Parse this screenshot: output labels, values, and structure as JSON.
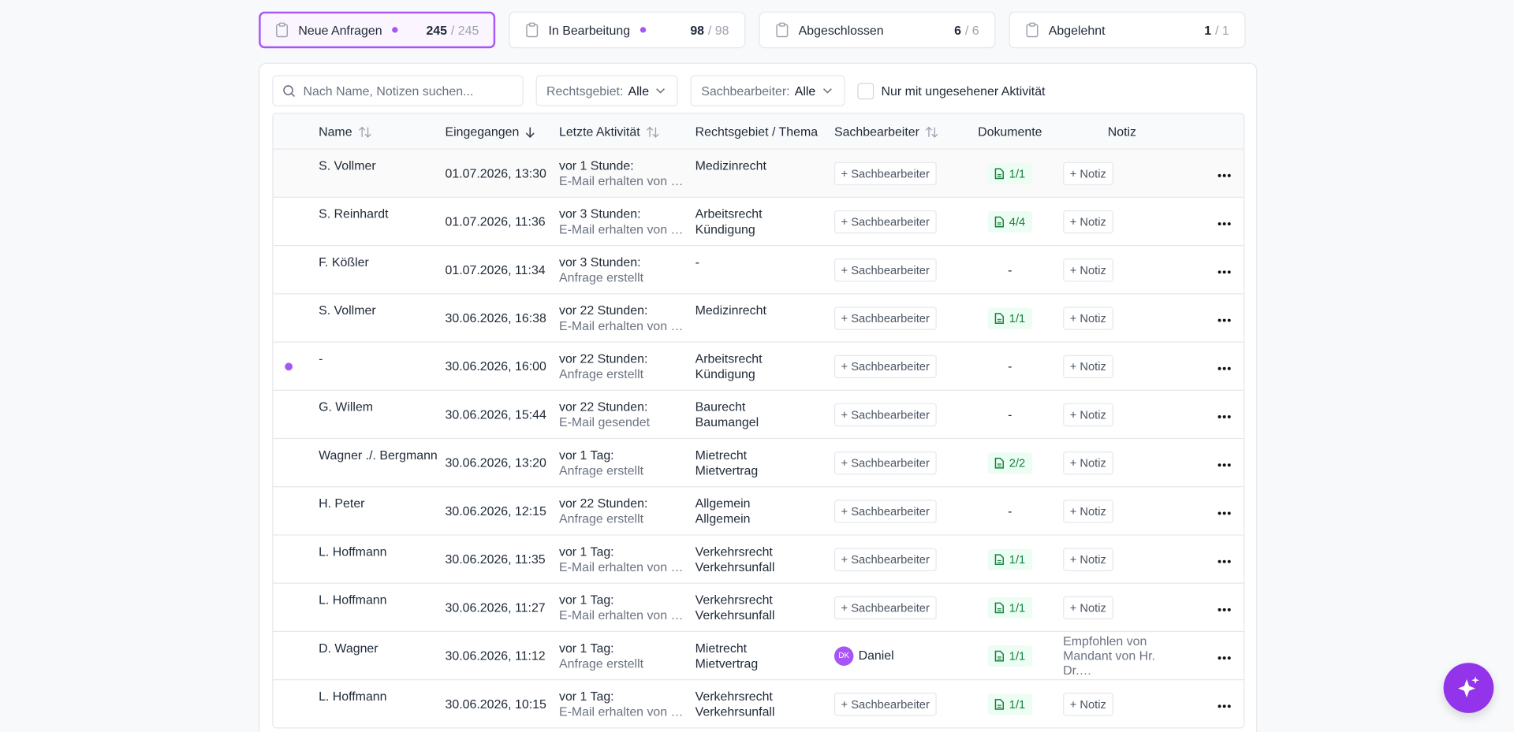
{
  "tabs": [
    {
      "label": "Neue Anfragen",
      "count": "245",
      "total": "/ 245",
      "unseen": true,
      "active": true
    },
    {
      "label": "In Bearbeitung",
      "count": "98",
      "total": "/ 98",
      "unseen": true,
      "active": false
    },
    {
      "label": "Abgeschlossen",
      "count": "6",
      "total": "/ 6",
      "unseen": false,
      "active": false
    },
    {
      "label": "Abgelehnt",
      "count": "1",
      "total": "/ 1",
      "unseen": false,
      "active": false
    }
  ],
  "filters": {
    "search_placeholder": "Nach Name, Notizen suchen...",
    "area_label": "Rechtsgebiet:",
    "area_value": "Alle",
    "assignee_label": "Sachbearbeiter:",
    "assignee_value": "Alle",
    "checkbox_label": "Nur mit ungesehener Aktivität"
  },
  "table": {
    "headers": [
      "Name",
      "Eingegangen",
      "Letzte Aktivität",
      "Rechtsgebiet / Thema",
      "Sachbearbeiter",
      "Dokumente",
      "Notiz"
    ],
    "add_assignee": "+ Sachbearbeiter",
    "add_note": "+ Notiz",
    "rows": [
      {
        "name": "S. Vollmer",
        "date": "01.07.2026, 13:30",
        "activity_time": "vor 1 Stunde:",
        "activity": "E-Mail erhalten von …",
        "area": [
          "Medizinrecht"
        ],
        "docs": "1/1",
        "unread": false
      },
      {
        "name": "S. Reinhardt",
        "date": "01.07.2026, 11:36",
        "activity_time": "vor 3 Stunden:",
        "activity": "E-Mail erhalten von …",
        "area": [
          "Arbeitsrecht",
          "Kündigung"
        ],
        "docs": "4/4",
        "unread": false
      },
      {
        "name": "F. Kößler",
        "date": "01.07.2026, 11:34",
        "activity_time": "vor 3 Stunden:",
        "activity": "Anfrage erstellt",
        "area": [
          "-"
        ],
        "docs_empty": "-",
        "unread": false
      },
      {
        "name": "S. Vollmer",
        "date": "30.06.2026, 16:38",
        "activity_time": "vor 22 Stunden:",
        "activity": "E-Mail erhalten von …",
        "area": [
          "Medizinrecht"
        ],
        "docs": "1/1",
        "unread": false
      },
      {
        "name": "-",
        "date": "30.06.2026, 16:00",
        "activity_time": "vor 22 Stunden:",
        "activity": "Anfrage erstellt",
        "area": [
          "Arbeitsrecht",
          "Kündigung"
        ],
        "docs_empty": "-",
        "unread": true
      },
      {
        "name": "G. Willem",
        "date": "30.06.2026, 15:44",
        "activity_time": "vor 22 Stunden:",
        "activity": "E-Mail gesendet",
        "area": [
          "Baurecht",
          "Baumangel"
        ],
        "docs_empty": "-",
        "unread": false
      },
      {
        "name": "Wagner ./. Bergmann",
        "date": "30.06.2026, 13:20",
        "activity_time": "vor 1 Tag:",
        "activity": "Anfrage erstellt",
        "area": [
          "Mietrecht",
          "Mietvertrag"
        ],
        "docs": "2/2",
        "unread": false
      },
      {
        "name": "H. Peter",
        "date": "30.06.2026, 12:15",
        "activity_time": "vor 22 Stunden:",
        "activity": "Anfrage erstellt",
        "area": [
          "Allgemein",
          "Allgemein"
        ],
        "docs_empty": "-",
        "unread": false
      },
      {
        "name": "L. Hoffmann",
        "date": "30.06.2026, 11:35",
        "activity_time": "vor 1 Tag:",
        "activity": "E-Mail erhalten von …",
        "area": [
          "Verkehrsrecht",
          "Verkehrsunfall"
        ],
        "docs": "1/1",
        "unread": false
      },
      {
        "name": "L. Hoffmann",
        "date": "30.06.2026, 11:27",
        "activity_time": "vor 1 Tag:",
        "activity": "E-Mail erhalten von …",
        "area": [
          "Verkehrsrecht",
          "Verkehrsunfall"
        ],
        "docs": "1/1",
        "unread": false
      },
      {
        "name": "D. Wagner",
        "date": "30.06.2026, 11:12",
        "activity_time": "vor 1 Tag:",
        "activity": "Anfrage erstellt",
        "area": [
          "Mietrecht",
          "Mietvertrag"
        ],
        "assignee": {
          "initials": "DK",
          "name": "Daniel"
        },
        "docs": "1/1",
        "note": [
          "Empfohlen von",
          "Mandant von Hr. Dr.…"
        ],
        "unread": false
      },
      {
        "name": "L. Hoffmann",
        "date": "30.06.2026, 10:15",
        "activity_time": "vor 1 Tag:",
        "activity": "E-Mail erhalten von …",
        "area": [
          "Verkehrsrecht",
          "Verkehrsunfall"
        ],
        "docs": "1/1",
        "unread": false
      }
    ]
  }
}
